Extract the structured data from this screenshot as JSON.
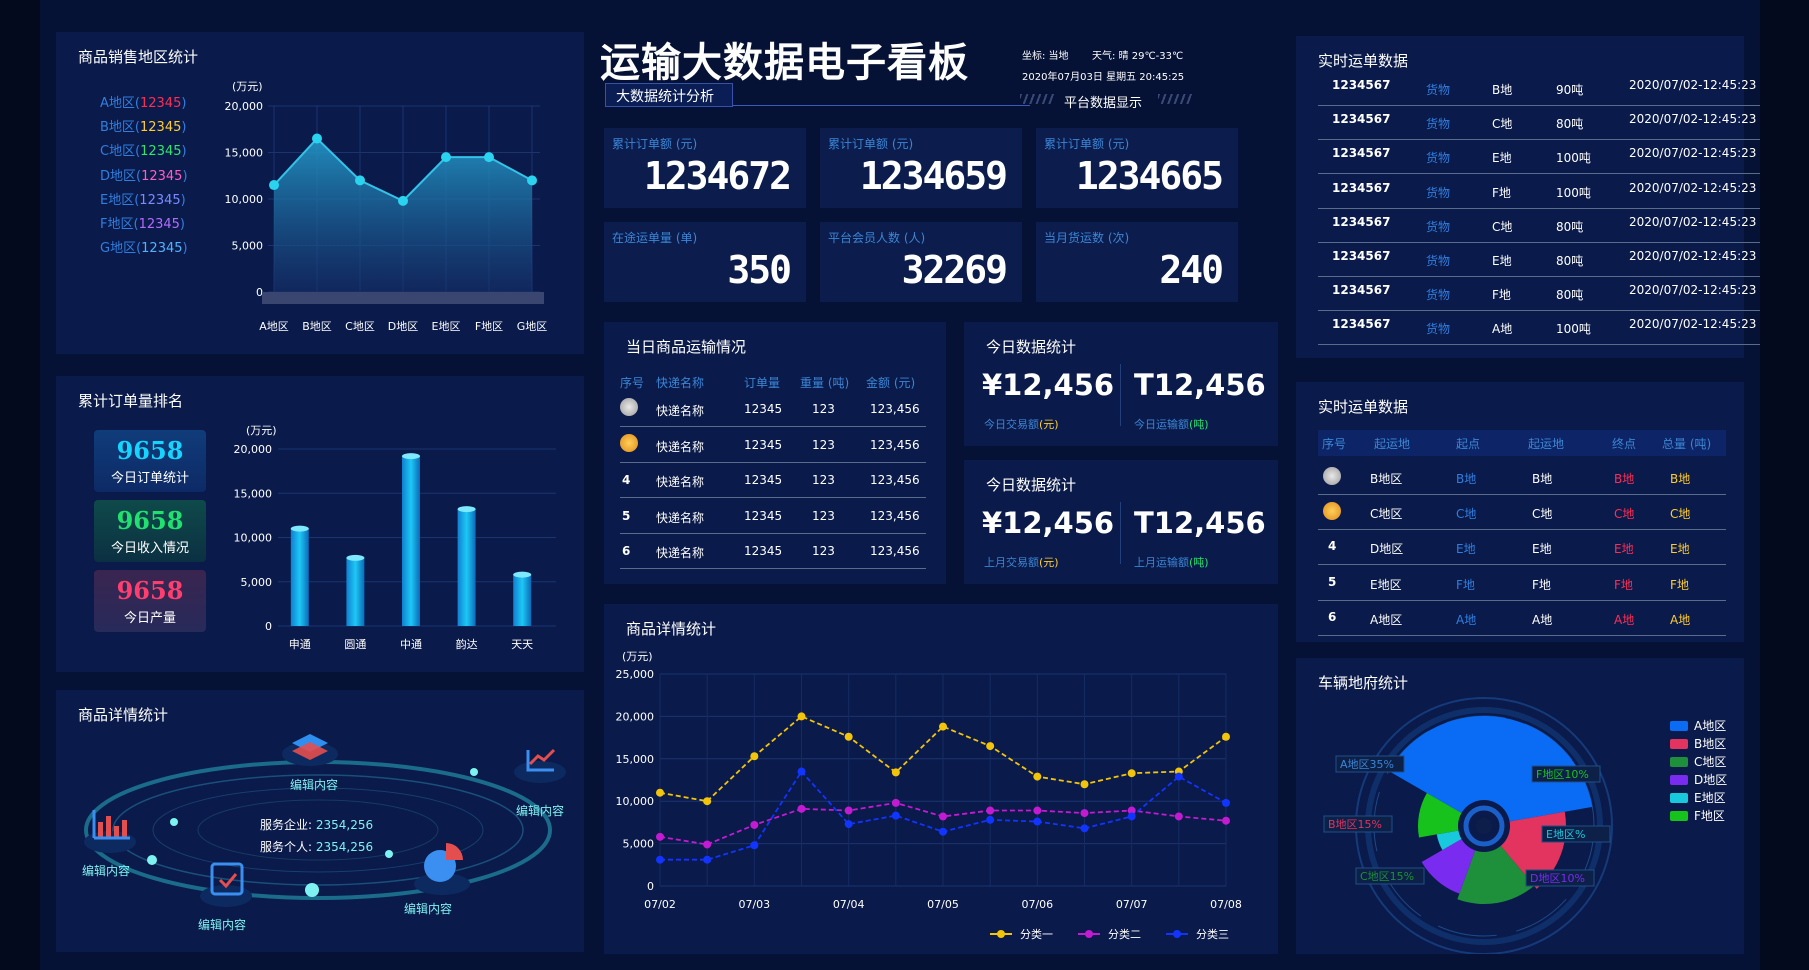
{
  "header": {
    "title": "运输大数据电子看板",
    "subtitle": "大数据统计分析",
    "location": "坐标: 当地",
    "weather": "天气: 晴 29℃-33℃",
    "datetime": "2020年07月03日 星期五 20:45:25",
    "platform": "平台数据显示"
  },
  "kpis": [
    {
      "label": "累计订单额 (元)",
      "value": "1234672"
    },
    {
      "label": "累计订单额 (元)",
      "value": "1234659"
    },
    {
      "label": "累计订单额 (元)",
      "value": "1234665"
    },
    {
      "label": "在途运单量 (单)",
      "value": "350"
    },
    {
      "label": "平台会员人数 (人)",
      "value": "32269"
    },
    {
      "label": "当月货运数 (次)",
      "value": "240"
    }
  ],
  "panels": {
    "region_sales": "商品销售地区统计",
    "order_rank": "累计订单量排名",
    "detail_left": "商品详情统计",
    "transport_today": "当日商品运输情况",
    "today_stats_1": "今日数据统计",
    "today_stats_2": "今日数据统计",
    "detail_center": "商品详情统计",
    "realtime_1": "实时运单数据",
    "realtime_2": "实时运单数据",
    "vehicle": "车辆地府统计"
  },
  "region_legend": [
    {
      "name": "A地区",
      "value": "12345",
      "color": "#ff2d55"
    },
    {
      "name": "B地区",
      "value": "12345",
      "color": "#ffcd2e"
    },
    {
      "name": "C地区",
      "value": "12345",
      "color": "#2ee66b"
    },
    {
      "name": "D地区",
      "value": "12345",
      "color": "#ff5ec4"
    },
    {
      "name": "E地区",
      "value": "12345",
      "color": "#7a8bff"
    },
    {
      "name": "F地区",
      "value": "12345",
      "color": "#b36bff"
    },
    {
      "name": "G地区",
      "value": "12345",
      "color": "#4fb3ff"
    }
  ],
  "rank_boxes": [
    {
      "value": "9658",
      "label": "今日订单统计",
      "color": "#15d5ff"
    },
    {
      "value": "9658",
      "label": "今日收入情况",
      "color": "#20e070"
    },
    {
      "value": "9658",
      "label": "今日产量",
      "color": "#ff3d6e"
    }
  ],
  "orbit": {
    "labels": [
      "编辑内容",
      "编辑内容",
      "编辑内容",
      "编辑内容",
      "编辑内容"
    ],
    "company_label": "服务企业:",
    "company_value": "2354,256",
    "person_label": "服务个人:",
    "person_value": "2354,256"
  },
  "transport_table": {
    "headers": [
      "序号",
      "快递名称",
      "订单量",
      "重量 (吨)",
      "金额 (元)"
    ],
    "rows": [
      {
        "rank": "",
        "name": "快递名称",
        "orders": "12345",
        "weight": "123",
        "amount": "123,456"
      },
      {
        "rank": "",
        "name": "快递名称",
        "orders": "12345",
        "weight": "123",
        "amount": "123,456"
      },
      {
        "rank": "4",
        "name": "快递名称",
        "orders": "12345",
        "weight": "123",
        "amount": "123,456"
      },
      {
        "rank": "5",
        "name": "快递名称",
        "orders": "12345",
        "weight": "123",
        "amount": "123,456"
      },
      {
        "rank": "6",
        "name": "快递名称",
        "orders": "12345",
        "weight": "123",
        "amount": "123,456"
      }
    ]
  },
  "stats": [
    {
      "money": "¥12,456",
      "money_label": "今日交易额",
      "money_unit": "(元)",
      "tons": "T12,456",
      "tons_label": "今日运输额",
      "tons_unit": "(吨)"
    },
    {
      "money": "¥12,456",
      "money_label": "上月交易额",
      "money_unit": "(元)",
      "tons": "T12,456",
      "tons_label": "上月运输额",
      "tons_unit": "(吨)"
    }
  ],
  "realtime_orders": [
    {
      "id": "1234567",
      "type": "货物",
      "area": "B地",
      "weight": "90吨",
      "time": "2020/07/02-12:45:23"
    },
    {
      "id": "1234567",
      "type": "货物",
      "area": "C地",
      "weight": "80吨",
      "time": "2020/07/02-12:45:23"
    },
    {
      "id": "1234567",
      "type": "货物",
      "area": "E地",
      "weight": "100吨",
      "time": "2020/07/02-12:45:23"
    },
    {
      "id": "1234567",
      "type": "货物",
      "area": "F地",
      "weight": "100吨",
      "time": "2020/07/02-12:45:23"
    },
    {
      "id": "1234567",
      "type": "货物",
      "area": "C地",
      "weight": "80吨",
      "time": "2020/07/02-12:45:23"
    },
    {
      "id": "1234567",
      "type": "货物",
      "area": "E地",
      "weight": "80吨",
      "time": "2020/07/02-12:45:23"
    },
    {
      "id": "1234567",
      "type": "货物",
      "area": "F地",
      "weight": "80吨",
      "time": "2020/07/02-12:45:23"
    },
    {
      "id": "1234567",
      "type": "货物",
      "area": "A地",
      "weight": "100吨",
      "time": "2020/07/02-12:45:23"
    }
  ],
  "route_table": {
    "headers": [
      "序号",
      "起运地",
      "起点",
      "起运地",
      "终点",
      "总量 (吨)"
    ],
    "rows": [
      {
        "rank": "",
        "from": "B地区",
        "start": "B地",
        "origin": "B地",
        "end": "B地",
        "total": "B地"
      },
      {
        "rank": "",
        "from": "C地区",
        "start": "C地",
        "origin": "C地",
        "end": "C地",
        "total": "C地"
      },
      {
        "rank": "4",
        "from": "D地区",
        "start": "E地",
        "origin": "E地",
        "end": "E地",
        "total": "E地"
      },
      {
        "rank": "5",
        "from": "E地区",
        "start": "F地",
        "origin": "F地",
        "end": "F地",
        "total": "F地"
      },
      {
        "rank": "6",
        "from": "A地区",
        "start": "A地",
        "origin": "A地",
        "end": "A地",
        "total": "A地"
      }
    ]
  },
  "chart_data": [
    {
      "type": "area",
      "id": "region",
      "categories": [
        "A地区",
        "B地区",
        "C地区",
        "D地区",
        "E地区",
        "F地区",
        "G地区"
      ],
      "values": [
        11500,
        16500,
        12000,
        9800,
        14500,
        14500,
        12000
      ],
      "ylabel": "(万元)",
      "ylim": [
        0,
        20000
      ],
      "yticks": [
        "0",
        "5,000",
        "10,000",
        "15,000",
        "20,000"
      ],
      "color": "#2aa9d6"
    },
    {
      "type": "bar",
      "id": "rank",
      "categories": [
        "申通",
        "圆通",
        "中通",
        "韵达",
        "天天"
      ],
      "values": [
        11000,
        7700,
        19200,
        13200,
        5800
      ],
      "ylabel": "(万元)",
      "ylim": [
        0,
        20000
      ],
      "yticks": [
        "0",
        "5,000",
        "10,000",
        "15,000",
        "20,000"
      ],
      "color": "#17b8f0"
    },
    {
      "type": "line",
      "id": "detail",
      "x": [
        "07/02",
        "",
        "07/03",
        "",
        "07/04",
        "",
        "07/05",
        "",
        "07/06",
        "",
        "07/07",
        "",
        "07/08"
      ],
      "ylabel": "(万元)",
      "ylim": [
        0,
        25000
      ],
      "yticks": [
        "0",
        "5,000",
        "10,000",
        "15,000",
        "20,000",
        "25,000"
      ],
      "series": [
        {
          "name": "分类一",
          "color": "#f2c40a",
          "values": [
            11000,
            10000,
            15300,
            20000,
            17600,
            13400,
            18800,
            16500,
            12900,
            12000,
            13300,
            13500,
            17600
          ]
        },
        {
          "name": "分类二",
          "color": "#c21bd1",
          "values": [
            5800,
            4900,
            7200,
            9100,
            8900,
            9800,
            8200,
            8900,
            8900,
            8600,
            8900,
            8200,
            7700
          ]
        },
        {
          "name": "分类三",
          "color": "#1234ff",
          "values": [
            3100,
            3100,
            4800,
            13500,
            7300,
            8300,
            6400,
            7800,
            7600,
            6800,
            8200,
            12900,
            9800
          ]
        }
      ]
    },
    {
      "type": "pie",
      "id": "vehicle",
      "slices": [
        {
          "name": "A地区",
          "label": "A地区35%",
          "value": 35,
          "color": "#0a6cf5"
        },
        {
          "name": "B地区",
          "label": "B地区15%",
          "value": 15,
          "color": "#e3335f"
        },
        {
          "name": "C地区",
          "label": "C地区15%",
          "value": 15,
          "color": "#1e8f3a"
        },
        {
          "name": "D地区",
          "label": "D地区10%",
          "value": 10,
          "color": "#7a2bf0"
        },
        {
          "name": "E地区",
          "label": "E地区%",
          "value": 5,
          "color": "#18c8dc"
        },
        {
          "name": "F地区",
          "label": "F地区10%",
          "value": 10,
          "color": "#17c21c"
        }
      ]
    }
  ]
}
